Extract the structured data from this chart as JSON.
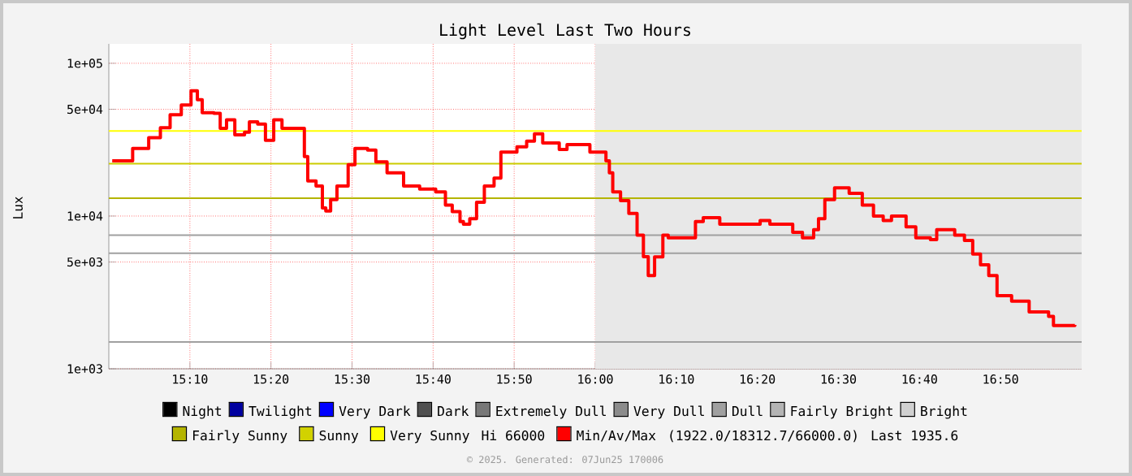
{
  "chart_data": {
    "type": "step",
    "title": "Light Level Last Two Hours",
    "ylabel": "Lux",
    "log": "y",
    "grid": true,
    "legend": "bottom",
    "xlim": [
      15.0,
      17.0
    ],
    "ylim": [
      1000,
      134000
    ],
    "xticks": [
      {
        "value": 15.1667,
        "label": "15:10"
      },
      {
        "value": 15.3333,
        "label": "15:20"
      },
      {
        "value": 15.5,
        "label": "15:30"
      },
      {
        "value": 15.6667,
        "label": "15:40"
      },
      {
        "value": 15.8333,
        "label": "15:50"
      },
      {
        "value": 16.0,
        "label": "16:00"
      },
      {
        "value": 16.1667,
        "label": "16:10"
      },
      {
        "value": 16.3333,
        "label": "16:20"
      },
      {
        "value": 16.5,
        "label": "16:30"
      },
      {
        "value": 16.6667,
        "label": "16:40"
      },
      {
        "value": 16.8333,
        "label": "16:50"
      }
    ],
    "yticks": [
      {
        "value": 1000,
        "label": "1e+03"
      },
      {
        "value": 5000,
        "label": "5e+03"
      },
      {
        "value": 10000,
        "label": "1e+04"
      },
      {
        "value": 50000,
        "label": "5e+04"
      },
      {
        "value": 100000,
        "label": "1e+05"
      }
    ],
    "x": [
      15.007,
      15.049,
      15.082,
      15.106,
      15.126,
      15.149,
      15.169,
      15.182,
      15.192,
      15.216,
      15.229,
      15.242,
      15.259,
      15.279,
      15.289,
      15.306,
      15.322,
      15.339,
      15.356,
      15.389,
      15.402,
      15.409,
      15.426,
      15.439,
      15.446,
      15.456,
      15.469,
      15.492,
      15.506,
      15.532,
      15.549,
      15.572,
      15.606,
      15.639,
      15.672,
      15.692,
      15.706,
      15.722,
      15.729,
      15.742,
      15.756,
      15.772,
      15.792,
      15.806,
      15.839,
      15.859,
      15.875,
      15.892,
      15.926,
      15.942,
      15.989,
      16.022,
      16.029,
      16.036,
      16.052,
      16.069,
      16.086,
      16.099,
      16.109,
      16.122,
      16.139,
      16.15,
      16.182,
      16.206,
      16.222,
      16.249,
      16.256,
      16.309,
      16.339,
      16.359,
      16.406,
      16.426,
      16.449,
      16.459,
      16.472,
      16.492,
      16.522,
      16.549,
      16.572,
      16.592,
      16.609,
      16.639,
      16.659,
      16.689,
      16.702,
      16.739,
      16.759,
      16.776,
      16.792,
      16.809,
      16.826,
      16.856,
      16.892,
      16.932,
      16.942,
      16.986
    ],
    "series": [
      {
        "name": "Night",
        "color": "#000000",
        "values": [
          null,
          null,
          null,
          null,
          null,
          null,
          null,
          null,
          null,
          null,
          null,
          null,
          null,
          null,
          null,
          null,
          null,
          null,
          null,
          null,
          null,
          null,
          null,
          null,
          null,
          null,
          null,
          null,
          null,
          null,
          null,
          null,
          null,
          null,
          null,
          null,
          null,
          null,
          null,
          null,
          null,
          null,
          null,
          null,
          null,
          null,
          null,
          null,
          null,
          null,
          null,
          null,
          null,
          null,
          null,
          null,
          null,
          null,
          null,
          null,
          null,
          null,
          null,
          null,
          null,
          null,
          null,
          null,
          null,
          null,
          null,
          null,
          null,
          null,
          null,
          null,
          null,
          null,
          null,
          null,
          null,
          null,
          null,
          null,
          null,
          null,
          null,
          null,
          null,
          null,
          null,
          null,
          null,
          null,
          null,
          null
        ]
      },
      {
        "name": "Twilight",
        "color": "#0000a0",
        "values": [
          null,
          null,
          null,
          null,
          null,
          null,
          null,
          null,
          null,
          null,
          null,
          null,
          null,
          null,
          null,
          null,
          null,
          null,
          null,
          null,
          null,
          null,
          null,
          null,
          null,
          null,
          null,
          null,
          null,
          null,
          null,
          null,
          null,
          null,
          null,
          null,
          null,
          null,
          null,
          null,
          null,
          null,
          null,
          null,
          null,
          null,
          null,
          null,
          null,
          null,
          null,
          null,
          null,
          null,
          null,
          null,
          null,
          null,
          null,
          null,
          null,
          null,
          null,
          null,
          null,
          null,
          null,
          null,
          null,
          null,
          null,
          null,
          null,
          null,
          null,
          null,
          null,
          null,
          null,
          null,
          null,
          null,
          null,
          null,
          null,
          null,
          null,
          null,
          null,
          null,
          null,
          null,
          null,
          null,
          null,
          null
        ]
      },
      {
        "name": "Very Dark",
        "color": "#0000ff",
        "values": [
          null,
          null,
          null,
          null,
          null,
          null,
          null,
          null,
          null,
          null,
          null,
          null,
          null,
          null,
          null,
          null,
          null,
          null,
          null,
          null,
          null,
          null,
          null,
          null,
          null,
          null,
          null,
          null,
          null,
          null,
          null,
          null,
          null,
          null,
          null,
          null,
          null,
          null,
          null,
          null,
          null,
          null,
          null,
          null,
          null,
          null,
          null,
          null,
          null,
          null,
          null,
          null,
          null,
          null,
          null,
          null,
          null,
          null,
          null,
          null,
          null,
          null,
          null,
          null,
          null,
          null,
          null,
          null,
          null,
          null,
          null,
          null,
          null,
          null,
          null,
          null,
          null,
          null,
          null,
          null,
          null,
          null,
          null,
          null,
          null,
          null,
          null,
          null,
          null,
          null,
          null,
          null,
          null,
          null,
          null,
          null
        ]
      },
      {
        "name": "Dark",
        "color": "#505050",
        "values": [
          null,
          null,
          null,
          null,
          null,
          null,
          null,
          null,
          null,
          null,
          null,
          null,
          null,
          null,
          null,
          null,
          null,
          null,
          null,
          null,
          null,
          null,
          null,
          null,
          null,
          null,
          null,
          null,
          null,
          null,
          null,
          null,
          null,
          null,
          null,
          null,
          null,
          null,
          null,
          null,
          null,
          null,
          null,
          null,
          null,
          null,
          null,
          null,
          null,
          null,
          null,
          null,
          null,
          null,
          null,
          null,
          null,
          null,
          null,
          null,
          null,
          null,
          null,
          null,
          null,
          null,
          null,
          null,
          null,
          null,
          null,
          null,
          null,
          null,
          null,
          null,
          null,
          null,
          null,
          null,
          null,
          null,
          null,
          null,
          null,
          null,
          null,
          null,
          null,
          null,
          null,
          null,
          null,
          null,
          null,
          null
        ]
      },
      {
        "name": "Extremely Dull",
        "color": "#787878",
        "values": [
          null,
          null,
          null,
          null,
          null,
          null,
          null,
          null,
          null,
          null,
          null,
          null,
          null,
          null,
          null,
          null,
          null,
          null,
          null,
          null,
          null,
          null,
          null,
          null,
          null,
          null,
          null,
          null,
          null,
          null,
          null,
          null,
          null,
          null,
          null,
          null,
          null,
          null,
          null,
          null,
          null,
          null,
          null,
          null,
          null,
          null,
          null,
          null,
          null,
          null,
          null,
          null,
          null,
          null,
          null,
          null,
          null,
          null,
          null,
          null,
          null,
          null,
          null,
          null,
          null,
          null,
          null,
          null,
          null,
          null,
          null,
          null,
          null,
          null,
          null,
          null,
          null,
          null,
          null,
          null,
          null,
          null,
          null,
          null,
          null,
          null,
          null,
          null,
          null,
          null,
          null,
          null,
          null,
          null,
          null,
          null
        ]
      },
      {
        "name": "Very Dull",
        "color": "#8c8c8c",
        "values": [
          null,
          null,
          null,
          null,
          null,
          null,
          null,
          null,
          null,
          null,
          null,
          null,
          null,
          null,
          null,
          null,
          null,
          null,
          null,
          null,
          null,
          null,
          null,
          null,
          null,
          null,
          null,
          null,
          null,
          null,
          null,
          null,
          null,
          null,
          null,
          null,
          null,
          null,
          null,
          null,
          null,
          null,
          null,
          null,
          null,
          null,
          null,
          null,
          null,
          null,
          null,
          null,
          null,
          null,
          null,
          null,
          null,
          null,
          null,
          null,
          null,
          null,
          null,
          null,
          null,
          null,
          null,
          null,
          null,
          null,
          null,
          null,
          null,
          null,
          null,
          null,
          null,
          null,
          null,
          null,
          null,
          null,
          null,
          null,
          null,
          null,
          null,
          null,
          null,
          null,
          null,
          null,
          null,
          null,
          null,
          null
        ]
      },
      {
        "name": "Dull",
        "color": "#a0a0a0",
        "values": [
          null,
          null,
          null,
          null,
          null,
          null,
          null,
          null,
          null,
          null,
          null,
          null,
          null,
          null,
          null,
          null,
          null,
          null,
          null,
          null,
          null,
          null,
          null,
          null,
          null,
          null,
          null,
          null,
          null,
          null,
          null,
          null,
          null,
          null,
          null,
          null,
          null,
          null,
          null,
          null,
          null,
          null,
          null,
          null,
          null,
          null,
          null,
          null,
          null,
          null,
          null,
          null,
          null,
          null,
          null,
          null,
          null,
          null,
          null,
          null,
          null,
          null,
          null,
          null,
          null,
          null,
          null,
          null,
          null,
          null,
          null,
          null,
          null,
          null,
          null,
          null,
          null,
          null,
          null,
          null,
          null,
          null,
          null,
          null,
          null,
          null,
          null,
          null,
          null,
          null,
          null,
          null,
          null,
          null,
          null,
          null
        ]
      },
      {
        "name": "Fairly Bright",
        "color": "#b4b4b4",
        "values": [
          null,
          null,
          null,
          null,
          null,
          null,
          null,
          null,
          null,
          null,
          null,
          null,
          null,
          null,
          null,
          null,
          null,
          null,
          null,
          null,
          null,
          null,
          null,
          null,
          null,
          null,
          null,
          null,
          null,
          null,
          null,
          null,
          null,
          null,
          null,
          null,
          null,
          null,
          null,
          null,
          null,
          null,
          null,
          null,
          null,
          null,
          null,
          null,
          null,
          null,
          null,
          null,
          null,
          null,
          null,
          null,
          null,
          null,
          null,
          null,
          null,
          null,
          null,
          null,
          null,
          null,
          null,
          null,
          null,
          null,
          null,
          null,
          null,
          null,
          null,
          null,
          null,
          null,
          null,
          null,
          null,
          null,
          null,
          null,
          null,
          null,
          null,
          null,
          null,
          null,
          null,
          null,
          null,
          null,
          null,
          null
        ]
      },
      {
        "name": "Bright",
        "color": "#d0d0d0",
        "values": [
          null,
          null,
          null,
          null,
          null,
          null,
          null,
          null,
          null,
          null,
          null,
          null,
          null,
          null,
          null,
          null,
          null,
          null,
          null,
          null,
          null,
          null,
          null,
          null,
          null,
          null,
          null,
          null,
          null,
          null,
          null,
          null,
          null,
          null,
          null,
          null,
          null,
          null,
          null,
          null,
          null,
          null,
          null,
          null,
          null,
          null,
          null,
          null,
          null,
          null,
          null,
          null,
          null,
          null,
          null,
          null,
          null,
          null,
          null,
          null,
          null,
          null,
          null,
          null,
          null,
          null,
          null,
          null,
          null,
          null,
          null,
          null,
          null,
          null,
          null,
          null,
          null,
          null,
          null,
          null,
          null,
          null,
          null,
          null,
          null,
          null,
          null,
          null,
          null,
          null,
          null,
          null,
          null,
          null,
          null,
          null
        ]
      },
      {
        "name": "Fairly Sunny",
        "color": "#b4b400",
        "values": [
          null,
          null,
          null,
          null,
          null,
          null,
          null,
          null,
          null,
          null,
          null,
          null,
          null,
          null,
          null,
          null,
          null,
          null,
          null,
          null,
          null,
          null,
          null,
          null,
          null,
          null,
          null,
          null,
          null,
          null,
          null,
          null,
          null,
          null,
          null,
          null,
          null,
          null,
          null,
          null,
          null,
          null,
          null,
          null,
          null,
          null,
          null,
          null,
          null,
          null,
          null,
          null,
          null,
          null,
          null,
          null,
          null,
          null,
          null,
          null,
          null,
          null,
          null,
          null,
          null,
          null,
          null,
          null,
          null,
          null,
          null,
          null,
          null,
          null,
          null,
          null,
          null,
          null,
          null,
          null,
          null,
          null,
          null,
          null,
          null,
          null,
          null,
          null,
          null,
          null,
          null,
          null,
          null,
          null,
          null,
          null
        ]
      },
      {
        "name": "Sunny",
        "color": "#d2d200",
        "values": [
          null,
          null,
          null,
          null,
          null,
          null,
          null,
          null,
          null,
          null,
          null,
          null,
          null,
          null,
          null,
          null,
          null,
          null,
          null,
          null,
          null,
          null,
          null,
          null,
          null,
          null,
          null,
          null,
          null,
          null,
          null,
          null,
          null,
          null,
          null,
          null,
          null,
          null,
          null,
          null,
          null,
          null,
          null,
          null,
          null,
          null,
          null,
          null,
          null,
          null,
          null,
          null,
          null,
          null,
          null,
          null,
          null,
          null,
          null,
          null,
          null,
          null,
          null,
          null,
          null,
          null,
          null,
          null,
          null,
          null,
          null,
          null,
          null,
          null,
          null,
          null,
          null,
          null,
          null,
          null,
          null,
          null,
          null,
          null,
          null,
          null,
          null,
          null,
          null,
          null,
          null,
          null,
          null,
          null,
          null,
          null
        ]
      },
      {
        "name": "Very Sunny",
        "color": "#ffff00",
        "values": [
          null,
          null,
          null,
          null,
          null,
          null,
          null,
          null,
          null,
          null,
          null,
          null,
          null,
          null,
          null,
          null,
          null,
          null,
          null,
          null,
          null,
          null,
          null,
          null,
          null,
          null,
          null,
          null,
          null,
          null,
          null,
          null,
          null,
          null,
          null,
          null,
          null,
          null,
          null,
          null,
          null,
          null,
          null,
          null,
          null,
          null,
          null,
          null,
          null,
          null,
          null,
          null,
          null,
          null,
          null,
          null,
          null,
          null,
          null,
          null,
          null,
          null,
          null,
          null,
          null,
          null,
          null,
          null,
          null,
          null,
          null,
          null,
          null,
          null,
          null,
          null,
          null,
          null,
          null,
          null,
          null,
          null,
          null,
          null,
          null,
          null,
          null,
          null,
          null,
          null,
          null,
          null,
          null,
          null,
          null,
          null
        ]
      },
      {
        "name": "Min/Av/Max",
        "color": "#ff0000",
        "values": [
          23000,
          27700,
          32600,
          37800,
          46000,
          53300,
          66000,
          57800,
          47500,
          47000,
          37500,
          42700,
          34000,
          35400,
          41400,
          40000,
          31300,
          42700,
          37500,
          37500,
          24500,
          17000,
          15700,
          11300,
          10800,
          12800,
          15700,
          21700,
          27700,
          27000,
          22600,
          19200,
          15700,
          15000,
          14400,
          11800,
          10700,
          9200,
          8850,
          9600,
          12300,
          15700,
          17700,
          26200,
          28400,
          30900,
          34500,
          30100,
          27300,
          29400,
          26200,
          23000,
          19200,
          14400,
          12600,
          10400,
          7500,
          5420,
          4070,
          5400,
          7500,
          7200,
          7200,
          9200,
          9750,
          9750,
          8850,
          8850,
          9350,
          8850,
          7830,
          7200,
          8150,
          9600,
          12800,
          15300,
          14100,
          11800,
          10000,
          9350,
          10000,
          8490,
          7200,
          7000,
          8150,
          7500,
          6930,
          5640,
          4800,
          4070,
          3010,
          2770,
          2360,
          2200,
          1922,
          1936
        ]
      }
    ],
    "ref_lines": [
      {
        "axis": "y",
        "value": 36000,
        "color": "#ffff00"
      },
      {
        "axis": "y",
        "value": 22000,
        "color": "#cccc00"
      },
      {
        "axis": "y",
        "value": 13100,
        "color": "#b4b400"
      },
      {
        "axis": "y",
        "value": 7500,
        "color": "#a0a0a0"
      },
      {
        "axis": "y",
        "value": 5700,
        "color": "#a0a0a0"
      },
      {
        "axis": "y",
        "value": 1500,
        "color": "#a0a0a0"
      }
    ],
    "bands": [
      {
        "axis": "x",
        "from": 16.0,
        "to": 17.0,
        "color": "#e8e8e8"
      }
    ],
    "annotations": [
      "Hi 66000",
      "(1922.0/18312.7/66000.0)",
      "Last 1935.6",
      "© 2025. Generated: 07Jun25 170006"
    ]
  }
}
